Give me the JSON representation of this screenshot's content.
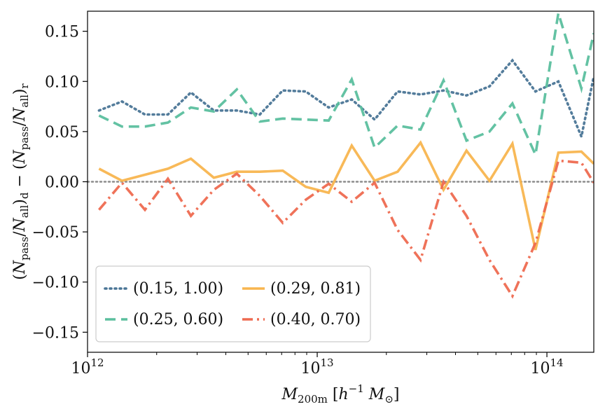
{
  "chart_data": {
    "type": "line",
    "title": "",
    "xlabel": "M_200m [h^-1 M_sun]",
    "ylabel": "(N_pass/N_all)_d - (N_pass/N_all)_r",
    "xscale": "log",
    "xlim": [
      1000000000000.0,
      160000000000000.0
    ],
    "ylim": [
      -0.17,
      0.17
    ],
    "x_ticks": [
      {
        "value": 1000000000000.0,
        "base": "10",
        "exp": "12"
      },
      {
        "value": 10000000000000.0,
        "base": "10",
        "exp": "13"
      },
      {
        "value": 100000000000000.0,
        "base": "10",
        "exp": "14"
      }
    ],
    "y_ticks": [
      {
        "value": 0.15,
        "label": "0.15"
      },
      {
        "value": 0.1,
        "label": "0.10"
      },
      {
        "value": 0.05,
        "label": "0.05"
      },
      {
        "value": 0.0,
        "label": "0.00"
      },
      {
        "value": -0.05,
        "label": "−0.05"
      },
      {
        "value": -0.1,
        "label": "−0.10"
      },
      {
        "value": -0.15,
        "label": "−0.15"
      }
    ],
    "reference_line": {
      "y": 0.0,
      "style": "dotted",
      "color": "#8c8c8c"
    },
    "series": [
      {
        "name": "(0.15, 1.00)",
        "color": "#4a7596",
        "style": "dotted",
        "x": [
          1122000000000.0,
          1413000000000.0,
          1778000000000.0,
          2239000000000.0,
          2818000000000.0,
          3548000000000.0,
          4467000000000.0,
          5623000000000.0,
          7079000000000.0,
          8913000000000.0,
          11220000000000.0,
          14130000000000.0,
          17780000000000.0,
          22390000000000.0,
          28180000000000.0,
          35480000000000.0,
          44670000000000.0,
          56230000000000.0,
          70790000000000.0,
          89130000000000.0,
          112200000000000.0,
          141300000000000.0,
          160000000000000.0
        ],
        "values": [
          0.071,
          0.08,
          0.067,
          0.067,
          0.089,
          0.071,
          0.071,
          0.067,
          0.091,
          0.09,
          0.074,
          0.082,
          0.062,
          0.09,
          0.087,
          0.091,
          0.086,
          0.095,
          0.121,
          0.09,
          0.1,
          0.045,
          0.105
        ]
      },
      {
        "name": "(0.25, 0.60)",
        "color": "#5bbf9e",
        "style": "dashed",
        "x": [
          1122000000000.0,
          1413000000000.0,
          1778000000000.0,
          2239000000000.0,
          2818000000000.0,
          3548000000000.0,
          4467000000000.0,
          5623000000000.0,
          7079000000000.0,
          8913000000000.0,
          11220000000000.0,
          14130000000000.0,
          17780000000000.0,
          22390000000000.0,
          28180000000000.0,
          35480000000000.0,
          44670000000000.0,
          56230000000000.0,
          70790000000000.0,
          89130000000000.0,
          112200000000000.0,
          141300000000000.0,
          160000000000000.0
        ],
        "values": [
          0.066,
          0.055,
          0.055,
          0.059,
          0.074,
          0.07,
          0.092,
          0.06,
          0.063,
          0.062,
          0.061,
          0.102,
          0.034,
          0.056,
          0.052,
          0.101,
          0.041,
          0.05,
          0.078,
          0.027,
          0.168,
          0.093,
          0.148
        ]
      },
      {
        "name": "(0.29, 0.81)",
        "color": "#f8b54f",
        "style": "solid",
        "x": [
          1122000000000.0,
          1413000000000.0,
          1778000000000.0,
          2239000000000.0,
          2818000000000.0,
          3548000000000.0,
          4467000000000.0,
          5623000000000.0,
          7079000000000.0,
          8913000000000.0,
          11220000000000.0,
          14130000000000.0,
          17780000000000.0,
          22390000000000.0,
          28180000000000.0,
          35480000000000.0,
          44670000000000.0,
          56230000000000.0,
          70790000000000.0,
          89130000000000.0,
          112200000000000.0,
          141300000000000.0,
          160000000000000.0
        ],
        "values": [
          0.013,
          0.001,
          0.007,
          0.013,
          0.023,
          0.004,
          0.01,
          0.01,
          0.011,
          -0.005,
          -0.011,
          0.036,
          0.001,
          0.01,
          0.039,
          -0.008,
          0.031,
          0.001,
          0.038,
          -0.068,
          0.029,
          0.03,
          0.018
        ]
      },
      {
        "name": "(0.40, 0.70)",
        "color": "#ee6a50",
        "style": "dashdot",
        "x": [
          1122000000000.0,
          1413000000000.0,
          1778000000000.0,
          2239000000000.0,
          2818000000000.0,
          3548000000000.0,
          4467000000000.0,
          5623000000000.0,
          7079000000000.0,
          8913000000000.0,
          11220000000000.0,
          14130000000000.0,
          17780000000000.0,
          22390000000000.0,
          28180000000000.0,
          35480000000000.0,
          44670000000000.0,
          56230000000000.0,
          70790000000000.0,
          89130000000000.0,
          112200000000000.0,
          141300000000000.0,
          160000000000000.0
        ],
        "values": [
          -0.028,
          -0.001,
          -0.028,
          0.003,
          -0.034,
          -0.008,
          0.008,
          -0.014,
          -0.041,
          -0.018,
          -0.002,
          -0.02,
          -0.001,
          -0.048,
          -0.078,
          0.0,
          -0.034,
          -0.078,
          -0.114,
          -0.061,
          0.021,
          0.019,
          -0.001
        ]
      }
    ],
    "legend": {
      "placement": "lower-left",
      "columns": 2
    }
  }
}
